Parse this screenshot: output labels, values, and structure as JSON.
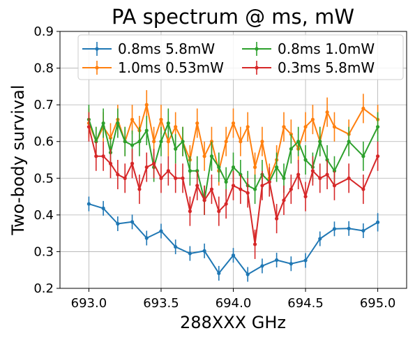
{
  "chart_data": {
    "type": "line",
    "title": "PA spectrum @ ms, mW",
    "xlabel": "288XXX GHz",
    "ylabel": "Two-body survival",
    "xlim": [
      692.8,
      695.2
    ],
    "ylim": [
      0.2,
      0.9
    ],
    "xticks": [
      "693.0",
      "693.5",
      "694.0",
      "694.5",
      "695.0"
    ],
    "yticks": [
      "0.2",
      "0.3",
      "0.4",
      "0.5",
      "0.6",
      "0.7",
      "0.8",
      "0.9"
    ],
    "grid": true,
    "legend_position": "top-center",
    "x": [
      693.0,
      693.0741,
      693.1481,
      693.2222,
      693.2963,
      693.3704,
      693.4444,
      693.5185,
      693.5926,
      693.6667,
      693.7407,
      693.8148,
      693.8889,
      693.963,
      694.037,
      694.1111,
      694.1852,
      694.2593,
      694.3333,
      694.4074,
      694.4815,
      694.5556,
      694.6296,
      694.7037,
      694.7778,
      694.8519,
      694.9259,
      695.0
    ],
    "series": [
      {
        "name": "0.8ms 5.8mW",
        "color": "#1f77b4",
        "x": [
          693.0,
          693.1,
          693.2,
          693.3,
          693.4,
          693.5,
          693.6,
          693.7,
          693.8,
          693.9,
          694.0,
          694.1,
          694.2,
          694.3,
          694.4,
          694.5,
          694.6,
          694.7,
          694.8,
          694.9,
          695.0
        ],
        "values": [
          0.43,
          0.418,
          0.376,
          0.381,
          0.337,
          0.356,
          0.313,
          0.295,
          0.302,
          0.241,
          0.29,
          0.238,
          0.261,
          0.277,
          0.267,
          0.276,
          0.335,
          0.362,
          0.363,
          0.357,
          0.38
        ],
        "errors": [
          0.02,
          0.02,
          0.02,
          0.02,
          0.02,
          0.02,
          0.02,
          0.02,
          0.02,
          0.02,
          0.02,
          0.02,
          0.02,
          0.02,
          0.02,
          0.02,
          0.02,
          0.02,
          0.02,
          0.02,
          0.025
        ]
      },
      {
        "name": "1.0ms 0.53mW",
        "color": "#ff7f0e",
        "values": [
          0.65,
          0.6,
          0.64,
          0.61,
          0.66,
          0.6,
          0.66,
          0.63,
          0.7,
          0.6,
          0.66,
          0.6,
          0.64,
          0.6,
          0.55,
          0.65,
          0.56,
          0.6,
          0.52,
          0.6,
          0.65,
          0.6,
          0.64,
          0.53,
          0.6,
          0.5,
          0.55,
          0.64,
          0.62,
          0.58,
          0.64,
          0.66,
          0.6,
          0.68,
          0.64,
          0.62,
          0.69,
          0.66
        ],
        "x": [
          693.0,
          693.05,
          693.1,
          693.15,
          693.2,
          693.25,
          693.3,
          693.35,
          693.4,
          693.45,
          693.5,
          693.55,
          693.6,
          693.65,
          693.7,
          693.75,
          693.8,
          693.85,
          693.9,
          693.95,
          694.0,
          694.05,
          694.1,
          694.15,
          694.2,
          694.25,
          694.3,
          694.35,
          694.4,
          694.45,
          694.5,
          694.55,
          694.6,
          694.65,
          694.7,
          694.8,
          694.9,
          695.0
        ],
        "errors": [
          0.04,
          0.04,
          0.04,
          0.04,
          0.04,
          0.04,
          0.04,
          0.04,
          0.04,
          0.04,
          0.04,
          0.04,
          0.04,
          0.04,
          0.04,
          0.04,
          0.04,
          0.04,
          0.04,
          0.04,
          0.04,
          0.04,
          0.04,
          0.04,
          0.04,
          0.04,
          0.04,
          0.04,
          0.04,
          0.04,
          0.04,
          0.04,
          0.04,
          0.04,
          0.04,
          0.04,
          0.04,
          0.04
        ]
      },
      {
        "name": "0.8ms 1.0mW",
        "color": "#2ca02c",
        "x": [
          693.0,
          693.05,
          693.1,
          693.15,
          693.2,
          693.25,
          693.3,
          693.35,
          693.4,
          693.45,
          693.5,
          693.55,
          693.6,
          693.65,
          693.7,
          693.75,
          693.8,
          693.85,
          693.9,
          693.95,
          694.0,
          694.05,
          694.1,
          694.15,
          694.2,
          694.25,
          694.3,
          694.35,
          694.4,
          694.45,
          694.5,
          694.55,
          694.6,
          694.65,
          694.7,
          694.8,
          694.9,
          695.0
        ],
        "values": [
          0.66,
          0.6,
          0.65,
          0.57,
          0.65,
          0.6,
          0.59,
          0.6,
          0.63,
          0.53,
          0.6,
          0.65,
          0.58,
          0.6,
          0.52,
          0.52,
          0.44,
          0.56,
          0.53,
          0.49,
          0.53,
          0.51,
          0.48,
          0.47,
          0.51,
          0.49,
          0.53,
          0.5,
          0.58,
          0.6,
          0.55,
          0.53,
          0.6,
          0.55,
          0.52,
          0.6,
          0.56,
          0.64
        ],
        "errors": [
          0.04,
          0.04,
          0.04,
          0.04,
          0.04,
          0.04,
          0.04,
          0.04,
          0.04,
          0.04,
          0.04,
          0.04,
          0.04,
          0.04,
          0.04,
          0.04,
          0.04,
          0.04,
          0.04,
          0.04,
          0.04,
          0.04,
          0.04,
          0.04,
          0.04,
          0.04,
          0.04,
          0.04,
          0.04,
          0.04,
          0.04,
          0.04,
          0.04,
          0.04,
          0.04,
          0.04,
          0.04,
          0.04
        ]
      },
      {
        "name": "0.3ms 5.8mW",
        "color": "#d62728",
        "x": [
          693.0,
          693.05,
          693.1,
          693.15,
          693.2,
          693.25,
          693.3,
          693.35,
          693.4,
          693.45,
          693.5,
          693.55,
          693.6,
          693.65,
          693.7,
          693.75,
          693.8,
          693.85,
          693.9,
          693.95,
          694.0,
          694.05,
          694.1,
          694.15,
          694.2,
          694.25,
          694.3,
          694.35,
          694.4,
          694.45,
          694.5,
          694.55,
          694.6,
          694.65,
          694.7,
          694.8,
          694.9,
          695.0
        ],
        "values": [
          0.64,
          0.56,
          0.56,
          0.54,
          0.51,
          0.5,
          0.54,
          0.47,
          0.53,
          0.54,
          0.5,
          0.52,
          0.5,
          0.5,
          0.41,
          0.48,
          0.44,
          0.47,
          0.41,
          0.43,
          0.48,
          0.47,
          0.46,
          0.32,
          0.48,
          0.49,
          0.39,
          0.44,
          0.47,
          0.51,
          0.45,
          0.52,
          0.5,
          0.51,
          0.48,
          0.5,
          0.47,
          0.56
        ],
        "errors": [
          0.04,
          0.04,
          0.04,
          0.04,
          0.04,
          0.04,
          0.04,
          0.04,
          0.04,
          0.04,
          0.04,
          0.04,
          0.04,
          0.04,
          0.04,
          0.04,
          0.04,
          0.04,
          0.04,
          0.04,
          0.04,
          0.04,
          0.04,
          0.04,
          0.04,
          0.04,
          0.04,
          0.04,
          0.04,
          0.04,
          0.04,
          0.04,
          0.04,
          0.04,
          0.04,
          0.04,
          0.04,
          0.04
        ]
      }
    ]
  }
}
